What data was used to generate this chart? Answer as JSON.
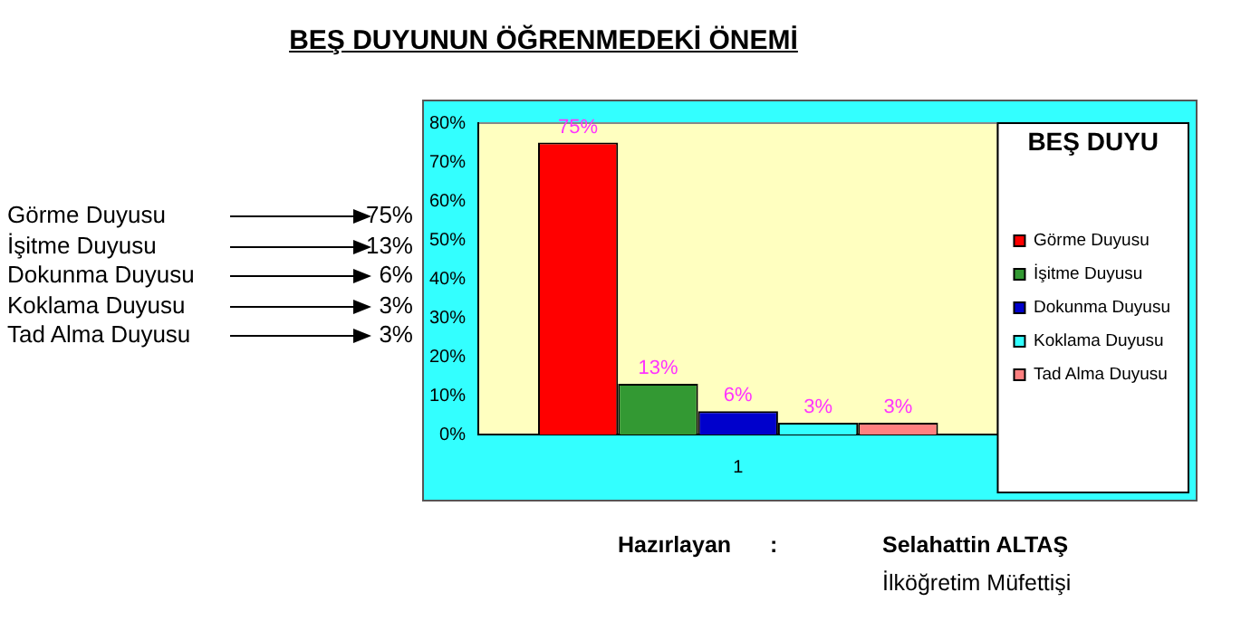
{
  "chart_data": {
    "type": "bar",
    "title": "BEŞ DUYUNUN ÖĞRENMEDEKİ ÖNEMİ",
    "subtitle": "BEŞ DUYU",
    "categories": [
      "1"
    ],
    "series": [
      {
        "name": "Görme Duyusu",
        "color": "#ff0000",
        "values": [
          75
        ],
        "value_labels": [
          "75%"
        ]
      },
      {
        "name": "İşitme Duyusu",
        "color": "#339933",
        "values": [
          13
        ],
        "value_labels": [
          "13%"
        ]
      },
      {
        "name": "Dokunma Duyusu",
        "color": "#0000cc",
        "values": [
          6
        ],
        "value_labels": [
          "6%"
        ]
      },
      {
        "name": "Koklama Duyusu",
        "color": "#33ffff",
        "values": [
          3
        ],
        "value_labels": [
          "3%"
        ]
      },
      {
        "name": "Tad Alma Duyusu",
        "color": "#ff8080",
        "values": [
          3
        ],
        "value_labels": [
          "3%"
        ]
      }
    ],
    "ylim": [
      0,
      80
    ],
    "yticks": [
      {
        "value": 0,
        "label": "0%"
      },
      {
        "value": 10,
        "label": "10%"
      },
      {
        "value": 20,
        "label": "20%"
      },
      {
        "value": 30,
        "label": "30%"
      },
      {
        "value": 40,
        "label": "40%"
      },
      {
        "value": 50,
        "label": "50%"
      },
      {
        "value": 60,
        "label": "60%"
      },
      {
        "value": 70,
        "label": "70%"
      },
      {
        "value": 80,
        "label": "80%"
      }
    ],
    "grid": false,
    "legend": "right",
    "annotations": [
      "Hazırlayan",
      ":",
      "Selahattin ALTAŞ",
      "İlköğretim Müfettişi"
    ]
  }
}
